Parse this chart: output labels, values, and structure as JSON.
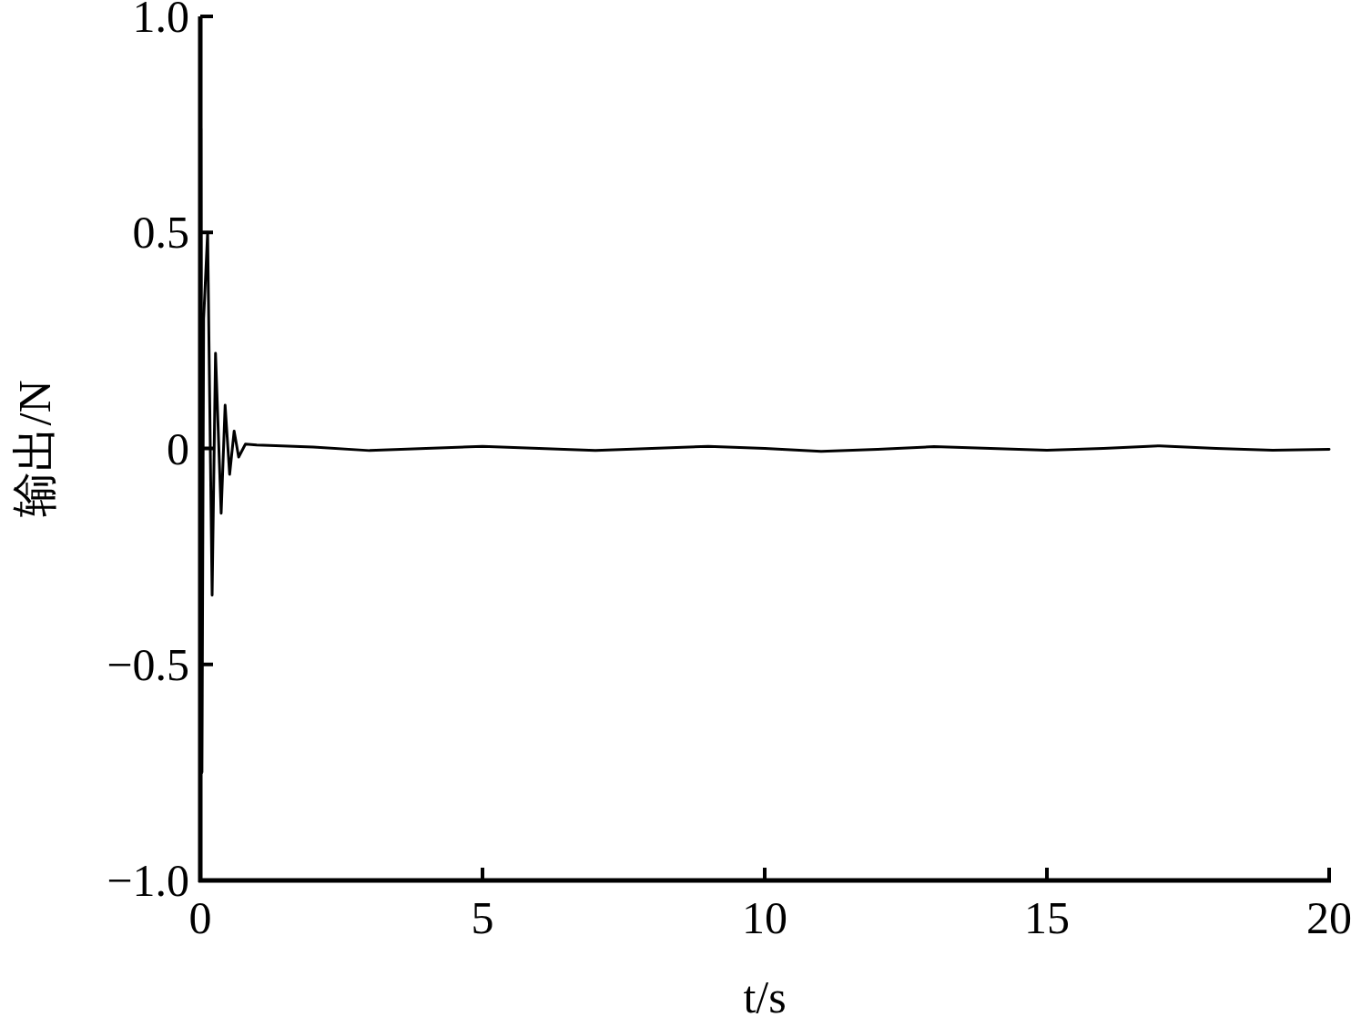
{
  "chart_data": {
    "type": "line",
    "xlabel": "t/s",
    "ylabel": "输出/N",
    "x": [
      0,
      0.01,
      0.03,
      0.06,
      0.13,
      0.21,
      0.27,
      0.37,
      0.44,
      0.52,
      0.6,
      0.68,
      0.8,
      1,
      2,
      3,
      4,
      5,
      6,
      7,
      8,
      9,
      10,
      11,
      12,
      13,
      14,
      15,
      16,
      17,
      18,
      19,
      20
    ],
    "series": [
      {
        "color": "#000000",
        "values": [
          0,
          0.74,
          -0.75,
          0.3,
          0.5,
          -0.34,
          0.22,
          -0.15,
          0.1,
          -0.06,
          0.04,
          -0.02,
          0.01,
          0.008,
          0.003,
          -0.005,
          0,
          0.005,
          0,
          -0.005,
          0,
          0.005,
          0,
          -0.007,
          -0.002,
          0.004,
          0,
          -0.004,
          0,
          0.006,
          0,
          -0.004,
          -0.002
        ]
      }
    ],
    "xlim": [
      0,
      20
    ],
    "xticks": [
      0,
      5,
      10,
      15,
      20
    ],
    "ylim": [
      -1,
      1
    ],
    "yticks": [
      {
        "value": -1,
        "label": "−1.0"
      },
      {
        "value": -0.5,
        "label": "−0.5"
      },
      0,
      {
        "value": 0.5,
        "label": "0.5"
      },
      {
        "value": 1,
        "label": "1.0"
      }
    ],
    "grid": false,
    "marker": "none",
    "line_style": "solid"
  }
}
